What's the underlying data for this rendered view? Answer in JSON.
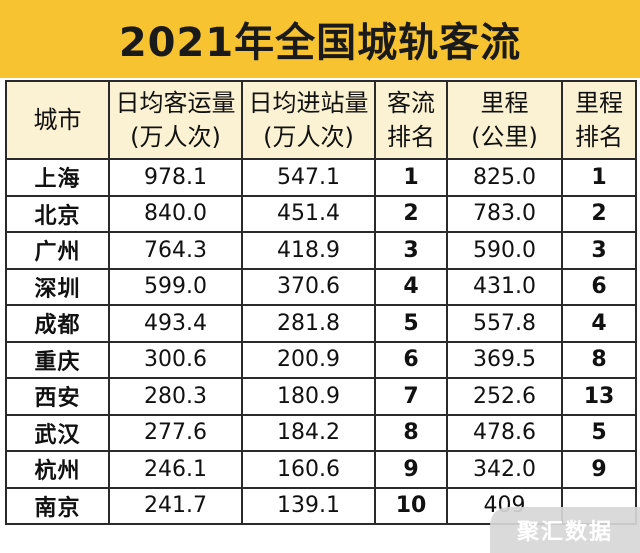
{
  "title": "2021年全国城轨客流",
  "headers": [
    {
      "line1": "城市",
      "line2": ""
    },
    {
      "line1": "日均客运量",
      "line2": "(万人次)"
    },
    {
      "line1": "日均进站量",
      "line2": "(万人次)"
    },
    {
      "line1": "客流",
      "line2": "排名"
    },
    {
      "line1": "里程",
      "line2": "(公里)"
    },
    {
      "line1": "里程",
      "line2": "排名"
    }
  ],
  "rows": [
    {
      "city": "上海",
      "daily_ridership": "978.1",
      "daily_entries": "547.1",
      "ridership_rank": "1",
      "mileage": "825.0",
      "mileage_rank": "1"
    },
    {
      "city": "北京",
      "daily_ridership": "840.0",
      "daily_entries": "451.4",
      "ridership_rank": "2",
      "mileage": "783.0",
      "mileage_rank": "2"
    },
    {
      "city": "广州",
      "daily_ridership": "764.3",
      "daily_entries": "418.9",
      "ridership_rank": "3",
      "mileage": "590.0",
      "mileage_rank": "3"
    },
    {
      "city": "深圳",
      "daily_ridership": "599.0",
      "daily_entries": "370.6",
      "ridership_rank": "4",
      "mileage": "431.0",
      "mileage_rank": "6"
    },
    {
      "city": "成都",
      "daily_ridership": "493.4",
      "daily_entries": "281.8",
      "ridership_rank": "5",
      "mileage": "557.8",
      "mileage_rank": "4"
    },
    {
      "city": "重庆",
      "daily_ridership": "300.6",
      "daily_entries": "200.9",
      "ridership_rank": "6",
      "mileage": "369.5",
      "mileage_rank": "8"
    },
    {
      "city": "西安",
      "daily_ridership": "280.3",
      "daily_entries": "180.9",
      "ridership_rank": "7",
      "mileage": "252.6",
      "mileage_rank": "13"
    },
    {
      "city": "武汉",
      "daily_ridership": "277.6",
      "daily_entries": "184.2",
      "ridership_rank": "8",
      "mileage": "478.6",
      "mileage_rank": "5"
    },
    {
      "city": "杭州",
      "daily_ridership": "246.1",
      "daily_entries": "160.6",
      "ridership_rank": "9",
      "mileage": "342.0",
      "mileage_rank": "9"
    },
    {
      "city": "南京",
      "daily_ridership": "241.7",
      "daily_entries": "139.1",
      "ridership_rank": "10",
      "mileage": "409",
      "mileage_rank": ""
    }
  ],
  "watermark": "聚汇数据",
  "colors": {
    "title_background": "#f7c331",
    "header_background": "#fbf1d3",
    "border": "#2a2a2a"
  }
}
